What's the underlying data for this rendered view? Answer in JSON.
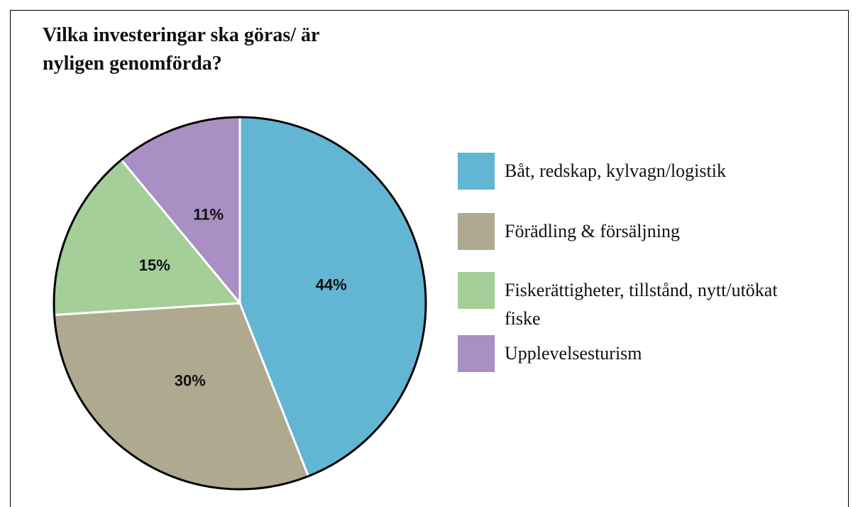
{
  "chart_data": {
    "type": "pie",
    "title": "Vilka investeringar ska göras/ är nyligen genomförda?",
    "categories": [
      "Båt, redskap, kylvagn/logistik",
      "Förädling & försäljning",
      "Fiskerättigheter, tillstånd, nytt/utökat fiske",
      "Upplevelsesturism"
    ],
    "values": [
      44,
      30,
      15,
      11
    ],
    "value_labels": [
      "44%",
      "30%",
      "15%",
      "11%"
    ],
    "colors": [
      "#62b5d3",
      "#aea98f",
      "#a4cf98",
      "#a98fc3"
    ],
    "legend": "right"
  }
}
